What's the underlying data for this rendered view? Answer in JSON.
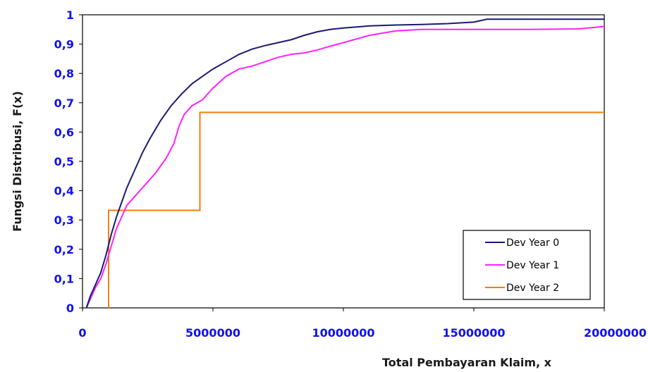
{
  "chart_data": {
    "type": "line",
    "xlabel": "Total Pembayaran Klaim, x",
    "ylabel": "Fungsi Distribusi, F(x)",
    "xlim": [
      0,
      20000000
    ],
    "ylim": [
      0,
      1
    ],
    "x_ticks": [
      0,
      5000000,
      10000000,
      15000000,
      20000000
    ],
    "x_tick_labels": [
      "0",
      "5000000",
      "10000000",
      "15000000",
      "20000000"
    ],
    "y_ticks": [
      0,
      0.1,
      0.2,
      0.3,
      0.4,
      0.5,
      0.6,
      0.7,
      0.8,
      0.9,
      1
    ],
    "y_tick_labels": [
      "0",
      "0,1",
      "0,2",
      "0,3",
      "0,4",
      "0,5",
      "0,6",
      "0,7",
      "0,8",
      "0,9",
      "1"
    ],
    "grid": false,
    "legend_position": "bottom-right",
    "series": [
      {
        "name": "Dev Year 0",
        "color": "#1a1a72",
        "step": false,
        "x": [
          150000,
          300000,
          500000,
          700000,
          900000,
          1100000,
          1300000,
          1500000,
          1700000,
          2000000,
          2300000,
          2600000,
          3000000,
          3400000,
          3800000,
          4200000,
          4600000,
          5000000,
          5500000,
          6000000,
          6500000,
          7000000,
          7500000,
          8000000,
          8500000,
          9000000,
          9500000,
          10000000,
          11000000,
          12000000,
          13000000,
          14000000,
          15000000,
          15500000,
          17000000,
          20000000
        ],
        "y": [
          0,
          0.04,
          0.08,
          0.12,
          0.18,
          0.25,
          0.31,
          0.36,
          0.41,
          0.47,
          0.53,
          0.58,
          0.64,
          0.69,
          0.73,
          0.765,
          0.79,
          0.815,
          0.84,
          0.865,
          0.883,
          0.895,
          0.905,
          0.915,
          0.93,
          0.942,
          0.95,
          0.955,
          0.962,
          0.965,
          0.967,
          0.97,
          0.975,
          0.985,
          0.985,
          0.985
        ]
      },
      {
        "name": "Dev Year 1",
        "color": "#ff22ff",
        "step": false,
        "x": [
          150000,
          300000,
          500000,
          700000,
          900000,
          1100000,
          1300000,
          1500000,
          1700000,
          2000000,
          2400000,
          2800000,
          3200000,
          3500000,
          3700000,
          3900000,
          4200000,
          4600000,
          5000000,
          5500000,
          6000000,
          6500000,
          7000000,
          7500000,
          8000000,
          8500000,
          9000000,
          9500000,
          10000000,
          11000000,
          12000000,
          13000000,
          14000000,
          15000000,
          17000000,
          19000000,
          20000000
        ],
        "y": [
          0,
          0.03,
          0.07,
          0.1,
          0.15,
          0.21,
          0.27,
          0.31,
          0.35,
          0.38,
          0.42,
          0.46,
          0.51,
          0.56,
          0.62,
          0.66,
          0.69,
          0.71,
          0.75,
          0.79,
          0.815,
          0.825,
          0.84,
          0.855,
          0.865,
          0.87,
          0.88,
          0.893,
          0.905,
          0.93,
          0.945,
          0.95,
          0.95,
          0.95,
          0.95,
          0.952,
          0.96
        ]
      },
      {
        "name": "Dev Year 2",
        "color": "#f07e10",
        "step": true,
        "x": [
          1000000,
          1000000,
          4500000,
          4500000,
          20000000
        ],
        "y": [
          0,
          0.333,
          0.333,
          0.667,
          0.667
        ]
      }
    ]
  }
}
